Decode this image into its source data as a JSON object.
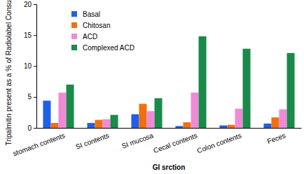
{
  "chart_data": {
    "type": "bar",
    "x_label": "GI srction",
    "y_label": "Tripalmitin present as a % of Radiolabel Consumed",
    "categories": [
      "stomach contents",
      "SI contents",
      "SI mucosa",
      "Cecal contents",
      "Colon contents",
      "Feces"
    ],
    "series": [
      {
        "name": "Basal",
        "color": "#2060e8",
        "values": [
          4.4,
          0.8,
          2.2,
          0.3,
          0.4,
          0.7
        ]
      },
      {
        "name": "Chitosan",
        "color": "#f07010",
        "values": [
          0.8,
          1.3,
          3.9,
          0.9,
          0.5,
          1.7
        ]
      },
      {
        "name": "ACD",
        "color": "#f08ad8",
        "values": [
          5.7,
          1.4,
          2.7,
          5.7,
          3.1,
          3.0
        ]
      },
      {
        "name": "Complexed ACD",
        "color": "#1a8a4a",
        "values": [
          7.0,
          2.1,
          4.8,
          14.8,
          12.8,
          12.1
        ]
      }
    ],
    "ylim": [
      0,
      20
    ],
    "yticks": [
      0,
      5,
      10,
      15,
      20
    ],
    "grid": false,
    "legend": "upper left"
  }
}
